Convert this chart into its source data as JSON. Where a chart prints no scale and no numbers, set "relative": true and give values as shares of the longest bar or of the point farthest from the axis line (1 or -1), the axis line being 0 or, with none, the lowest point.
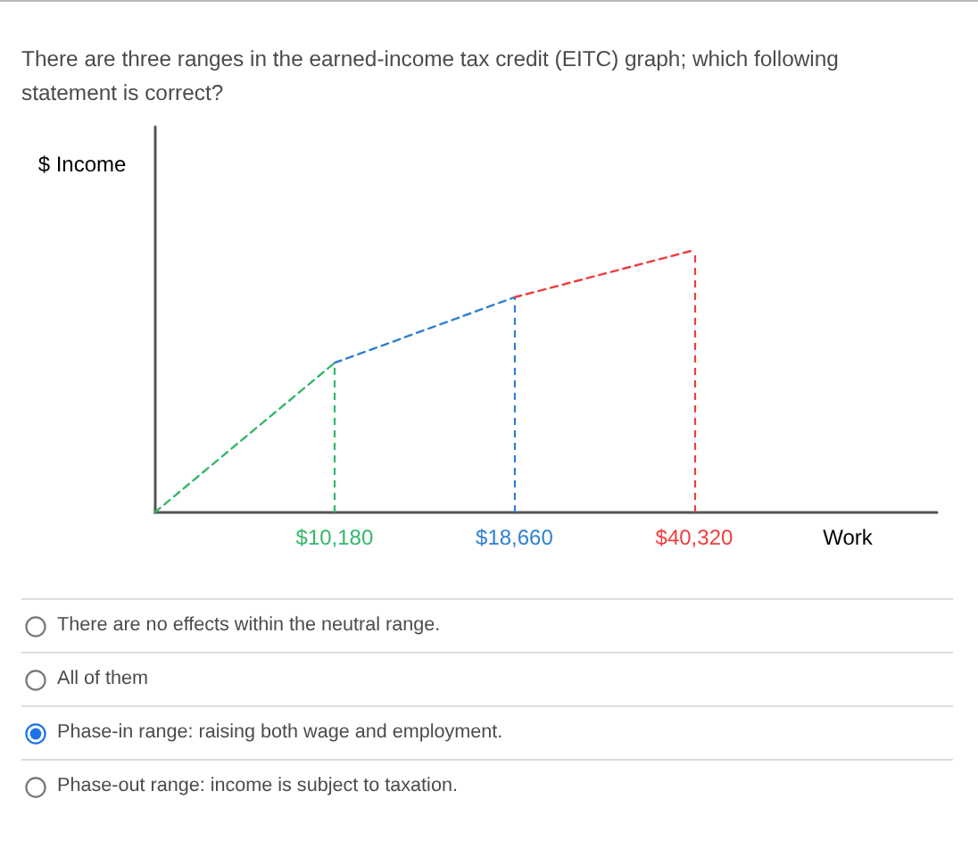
{
  "chart_data": {
    "type": "line",
    "title": "There are three ranges in the earned-income tax credit (EITC) graph; which following statement is correct?",
    "xlabel": "Work",
    "ylabel": "$ Income",
    "relative": true,
    "categories": [
      null,
      "$10,180",
      "$18,660",
      "$40,320"
    ],
    "series": [
      {
        "color": "#33b86a",
        "values": [
          0,
          0.57,
          null,
          null
        ]
      },
      {
        "color": "#2f80d0",
        "values": [
          null,
          0.57,
          0.82,
          null
        ]
      },
      {
        "color": "#f03c3c",
        "values": [
          null,
          null,
          0.82,
          1
        ]
      }
    ],
    "ref_lines": [
      {
        "axis": "x",
        "value": "$10,180",
        "color": "#33b86a",
        "line_style": "dashed"
      },
      {
        "axis": "x",
        "value": "$18,660",
        "color": "#2f80d0",
        "line_style": "dashed"
      },
      {
        "axis": "x",
        "value": "$40,320",
        "color": "#f03c3c",
        "line_style": "dashed"
      }
    ],
    "annotations": [
      "There are no effects within the neutral range.",
      "All of them",
      "Phase-in range: raising both wage and employment.",
      "Phase-out range: income is subject to taxation."
    ],
    "grid": false,
    "marker": "none",
    "line_style": "dashed"
  }
}
